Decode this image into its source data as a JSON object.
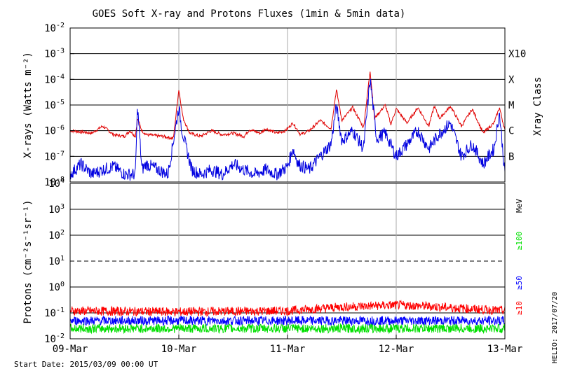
{
  "title": "GOES Soft X-ray and Protons Fluxes   (1min & 5min data)",
  "footer": {
    "start_date": "Start Date: 2015/03/09 00:00 UT",
    "helio": "HELIO: 2017/07/20"
  },
  "colors": {
    "xray_long": "#e00000",
    "xray_short": "#0000e0",
    "proton_10": "#ff0000",
    "proton_50": "#0000ff",
    "proton_100": "#00e000"
  },
  "chart_data": [
    {
      "type": "line",
      "panel": "xray",
      "ylabel": "X-rays (Watts m⁻²)",
      "y_scale": "log",
      "ylim": [
        1e-08,
        0.01
      ],
      "y_ticks": [
        {
          "exp": "-2",
          "value": 0.01
        },
        {
          "exp": "-3",
          "value": 0.001
        },
        {
          "exp": "-4",
          "value": 0.0001
        },
        {
          "exp": "-5",
          "value": 1e-05
        },
        {
          "exp": "-6",
          "value": 1e-06
        },
        {
          "exp": "-7",
          "value": 1e-07
        },
        {
          "exp": "-8",
          "value": 1e-08
        }
      ],
      "right_axis_label": "Xray Class",
      "class_labels": [
        {
          "label": "X10",
          "value": 0.001
        },
        {
          "label": "X",
          "value": 0.0001
        },
        {
          "label": "M",
          "value": 1e-05
        },
        {
          "label": "C",
          "value": 1e-06
        },
        {
          "label": "B",
          "value": 1e-07
        }
      ],
      "x_range_days": [
        0,
        4
      ],
      "grid": "horizontal at each decade, vertical at day boundaries",
      "series": [
        {
          "key": "long",
          "color": "#e00000",
          "x": [
            0,
            0.1,
            0.2,
            0.3,
            0.4,
            0.5,
            0.55,
            0.6,
            0.62,
            0.66,
            0.7,
            0.85,
            0.95,
            1.0,
            1.04,
            1.1,
            1.2,
            1.3,
            1.4,
            1.5,
            1.6,
            1.65,
            1.75,
            1.8,
            1.9,
            1.98,
            2.05,
            2.12,
            2.2,
            2.3,
            2.4,
            2.45,
            2.5,
            2.6,
            2.7,
            2.76,
            2.8,
            2.9,
            2.95,
            3.0,
            3.1,
            3.2,
            3.3,
            3.35,
            3.4,
            3.5,
            3.6,
            3.7,
            3.8,
            3.9,
            3.95,
            4.0
          ],
          "y": [
            1e-06,
            9e-07,
            8e-07,
            1.5e-06,
            7e-07,
            6e-07,
            1e-06,
            6e-07,
            3e-06,
            1e-06,
            7e-07,
            6e-07,
            5e-07,
            4e-05,
            3e-06,
            8e-07,
            6e-07,
            1e-06,
            7e-07,
            8e-07,
            6e-07,
            1.1e-06,
            8e-07,
            1.2e-06,
            8e-07,
            1e-06,
            2e-06,
            7e-07,
            1e-06,
            2.5e-06,
            1.2e-06,
            4e-05,
            2.5e-06,
            8e-06,
            1.3e-06,
            0.00022,
            3e-06,
            1e-05,
            1.8e-06,
            7e-06,
            2e-06,
            8e-06,
            1.5e-06,
            9e-06,
            3e-06,
            9e-06,
            1.5e-06,
            7e-06,
            8e-07,
            2e-06,
            8e-06,
            1e-06
          ]
        },
        {
          "key": "short",
          "color": "#0000e0",
          "x": [
            0,
            0.1,
            0.2,
            0.3,
            0.4,
            0.5,
            0.6,
            0.62,
            0.66,
            0.7,
            0.9,
            1.0,
            1.03,
            1.07,
            1.12,
            1.2,
            1.3,
            1.4,
            1.5,
            1.6,
            1.7,
            1.8,
            1.9,
            2.0,
            2.05,
            2.1,
            2.2,
            2.3,
            2.4,
            2.45,
            2.5,
            2.6,
            2.7,
            2.76,
            2.82,
            2.9,
            3.0,
            3.1,
            3.2,
            3.3,
            3.4,
            3.5,
            3.6,
            3.7,
            3.8,
            3.9,
            3.95,
            4.0
          ],
          "y": [
            2e-08,
            5e-08,
            2e-08,
            3e-08,
            4e-08,
            2e-08,
            2e-08,
            1e-05,
            3e-08,
            5e-08,
            2e-08,
            8e-06,
            1e-06,
            2e-07,
            3e-08,
            2e-08,
            3e-08,
            2e-08,
            5e-08,
            3e-08,
            2e-08,
            3e-08,
            2e-08,
            4e-08,
            2e-07,
            5e-08,
            3e-08,
            1e-07,
            3e-07,
            9e-06,
            4e-07,
            1e-06,
            2e-07,
            0.0001,
            5e-07,
            8e-07,
            1e-07,
            3e-07,
            1e-06,
            2e-07,
            8e-07,
            2e-06,
            1e-07,
            3e-07,
            5e-08,
            2e-07,
            5e-06,
            2e-08
          ]
        }
      ]
    },
    {
      "type": "line",
      "panel": "protons",
      "ylabel": "Protons (cm⁻²s⁻¹sr⁻¹)",
      "y_scale": "log",
      "ylim": [
        0.01,
        10000
      ],
      "y_ticks": [
        {
          "base": "10",
          "exp": "4",
          "value": 10000
        },
        {
          "base": "10",
          "exp": "3",
          "value": 1000
        },
        {
          "base": "10",
          "exp": "2",
          "value": 100
        },
        {
          "base": "10",
          "exp": "1",
          "value": 10
        },
        {
          "base": "10",
          "exp": "0",
          "value": 1
        },
        {
          "base": "10",
          "exp": "-1",
          "value": 0.1
        },
        {
          "base": "10",
          "exp": "-2",
          "value": 0.01
        }
      ],
      "threshold_dashed": 10,
      "unit_label": "MeV",
      "x_categories": [
        "09-Mar",
        "10-Mar",
        "11-Mar",
        "12-Mar",
        "13-Mar"
      ],
      "x_range_days": [
        0,
        4
      ],
      "series": [
        {
          "key": "p10",
          "name": "≥10",
          "color": "#ff0000",
          "x": [
            0,
            1,
            2,
            2.5,
            3,
            3.3,
            3.6,
            4
          ],
          "y": [
            0.12,
            0.11,
            0.12,
            0.17,
            0.2,
            0.18,
            0.15,
            0.12
          ]
        },
        {
          "key": "p50",
          "name": "≥50",
          "color": "#0000ff",
          "x": [
            0,
            1,
            2,
            3,
            4
          ],
          "y": [
            0.05,
            0.05,
            0.05,
            0.05,
            0.05
          ]
        },
        {
          "key": "p100",
          "name": "≥100",
          "color": "#00e000",
          "x": [
            0,
            1,
            2,
            3,
            4
          ],
          "y": [
            0.025,
            0.025,
            0.025,
            0.025,
            0.025
          ]
        }
      ]
    }
  ]
}
